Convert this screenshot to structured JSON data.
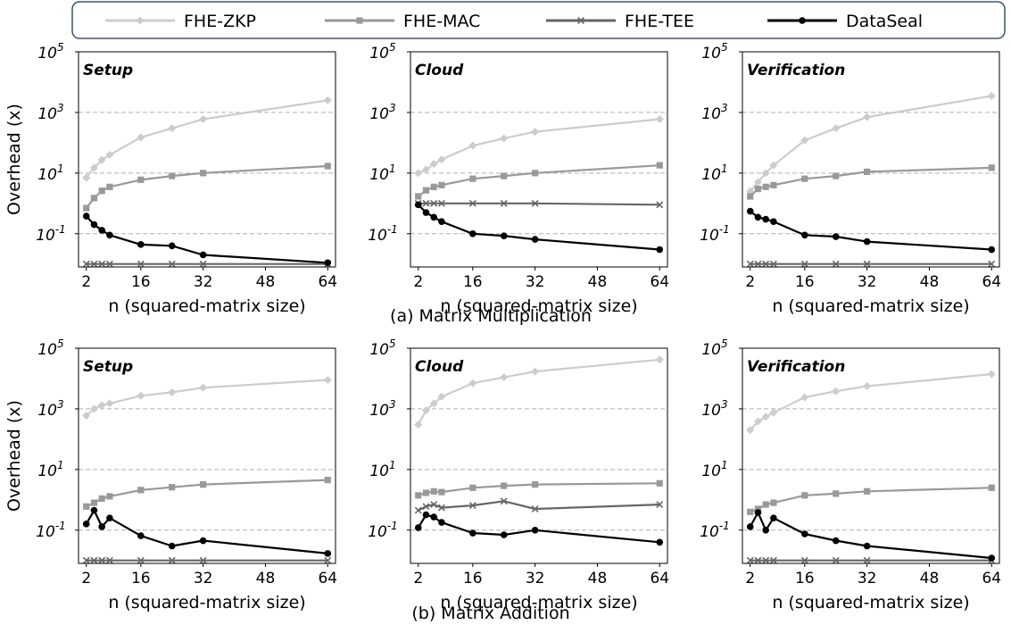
{
  "legend": [
    {
      "name": "FHE-ZKP",
      "color": "#cccccc",
      "marker": "diamond"
    },
    {
      "name": "FHE-MAC",
      "color": "#999999",
      "marker": "square"
    },
    {
      "name": "FHE-TEE",
      "color": "#666666",
      "marker": "x"
    },
    {
      "name": "DataSeal",
      "color": "#000000",
      "marker": "circle"
    }
  ],
  "captions": [
    "(a) Matrix Multiplication",
    "(b) Matrix Addition"
  ],
  "chart_data": [
    {
      "type": "line",
      "group": "(a) Matrix Multiplication",
      "title": "Setup",
      "xlabel": "n (squared-matrix size)",
      "ylabel": "Overhead (x)",
      "x": [
        2,
        4,
        6,
        8,
        16,
        24,
        32,
        64
      ],
      "yscale": "log",
      "ylim": [
        0.008,
        100000
      ],
      "xlim": [
        0,
        66
      ],
      "xticks": [
        2,
        16,
        32,
        48,
        64
      ],
      "yticks": [
        "10^-1",
        "10^1",
        "10^3",
        "10^5"
      ],
      "series": [
        {
          "name": "FHE-ZKP",
          "values": [
            7,
            15,
            27,
            40,
            150,
            300,
            600,
            2500
          ]
        },
        {
          "name": "FHE-MAC",
          "values": [
            0.7,
            1.5,
            2.6,
            3.5,
            6,
            8,
            10,
            17
          ]
        },
        {
          "name": "FHE-TEE",
          "values": [
            0.01,
            0.01,
            0.01,
            0.01,
            0.01,
            0.01,
            0.01,
            0.01
          ]
        },
        {
          "name": "DataSeal",
          "values": [
            0.38,
            0.2,
            0.13,
            0.09,
            0.044,
            0.04,
            0.02,
            0.011
          ]
        }
      ]
    },
    {
      "type": "line",
      "group": "(a) Matrix Multiplication",
      "title": "Cloud",
      "xlabel": "n (squared-matrix size)",
      "ylabel": "",
      "x": [
        2,
        4,
        6,
        8,
        16,
        24,
        32,
        64
      ],
      "yscale": "log",
      "ylim": [
        0.008,
        100000
      ],
      "xlim": [
        0,
        66
      ],
      "xticks": [
        2,
        16,
        32,
        48,
        64
      ],
      "yticks": [
        "10^-1",
        "10^1",
        "10^3",
        "10^5"
      ],
      "series": [
        {
          "name": "FHE-ZKP",
          "values": [
            10,
            13,
            20,
            28,
            80,
            140,
            230,
            600
          ]
        },
        {
          "name": "FHE-MAC",
          "values": [
            1.7,
            2.7,
            3.5,
            4,
            6.5,
            8,
            10,
            18
          ]
        },
        {
          "name": "FHE-TEE",
          "values": [
            1,
            1,
            1,
            1,
            1,
            1,
            1,
            0.9
          ]
        },
        {
          "name": "DataSeal",
          "values": [
            0.9,
            0.5,
            0.35,
            0.25,
            0.1,
            0.085,
            0.065,
            0.03
          ]
        }
      ]
    },
    {
      "type": "line",
      "group": "(a) Matrix Multiplication",
      "title": "Verification",
      "xlabel": "n (squared-matrix size)",
      "ylabel": "",
      "x": [
        2,
        4,
        6,
        8,
        16,
        24,
        32,
        64
      ],
      "yscale": "log",
      "ylim": [
        0.008,
        100000
      ],
      "xlim": [
        0,
        66
      ],
      "xticks": [
        2,
        16,
        32,
        48,
        64
      ],
      "yticks": [
        "10^-1",
        "10^1",
        "10^3",
        "10^5"
      ],
      "series": [
        {
          "name": "FHE-ZKP",
          "values": [
            2.5,
            5,
            10,
            18,
            120,
            300,
            700,
            3500
          ]
        },
        {
          "name": "FHE-MAC",
          "values": [
            1.7,
            3,
            3.5,
            4,
            6.5,
            8,
            11,
            15
          ]
        },
        {
          "name": "FHE-TEE",
          "values": [
            0.01,
            0.01,
            0.01,
            0.01,
            0.01,
            0.01,
            0.01,
            0.01
          ]
        },
        {
          "name": "DataSeal",
          "values": [
            0.55,
            0.35,
            0.3,
            0.25,
            0.09,
            0.08,
            0.055,
            0.03
          ]
        }
      ]
    },
    {
      "type": "line",
      "group": "(b) Matrix Addition",
      "title": "Setup",
      "xlabel": "n (squared-matrix size)",
      "ylabel": "Overhead (x)",
      "x": [
        2,
        4,
        6,
        8,
        16,
        24,
        32,
        64
      ],
      "yscale": "log",
      "ylim": [
        0.008,
        100000
      ],
      "xlim": [
        0,
        66
      ],
      "xticks": [
        2,
        16,
        32,
        48,
        64
      ],
      "yticks": [
        "10^-1",
        "10^1",
        "10^3",
        "10^5"
      ],
      "series": [
        {
          "name": "FHE-ZKP",
          "values": [
            600,
            1000,
            1300,
            1500,
            2700,
            3500,
            5000,
            9000
          ]
        },
        {
          "name": "FHE-MAC",
          "values": [
            0.6,
            0.8,
            1.1,
            1.3,
            2.1,
            2.6,
            3.2,
            4.5
          ]
        },
        {
          "name": "FHE-TEE",
          "values": [
            0.01,
            0.01,
            0.01,
            0.01,
            0.01,
            0.01,
            0.01,
            0.01
          ]
        },
        {
          "name": "DataSeal",
          "values": [
            0.16,
            0.45,
            0.13,
            0.25,
            0.065,
            0.03,
            0.045,
            0.017
          ]
        }
      ]
    },
    {
      "type": "line",
      "group": "(b) Matrix Addition",
      "title": "Cloud",
      "xlabel": "n (squared-matrix size)",
      "ylabel": "",
      "x": [
        2,
        4,
        6,
        8,
        16,
        24,
        32,
        64
      ],
      "yscale": "log",
      "ylim": [
        0.008,
        100000
      ],
      "xlim": [
        0,
        66
      ],
      "xticks": [
        2,
        16,
        32,
        48,
        64
      ],
      "yticks": [
        "10^-1",
        "10^1",
        "10^3",
        "10^5"
      ],
      "series": [
        {
          "name": "FHE-ZKP",
          "values": [
            300,
            900,
            1500,
            2500,
            7000,
            11000,
            17000,
            42000
          ]
        },
        {
          "name": "FHE-MAC",
          "values": [
            1.4,
            1.7,
            1.9,
            1.8,
            2.5,
            2.9,
            3.2,
            3.5
          ]
        },
        {
          "name": "FHE-TEE",
          "values": [
            0.45,
            0.6,
            0.7,
            0.55,
            0.65,
            0.9,
            0.5,
            0.7
          ]
        },
        {
          "name": "DataSeal",
          "values": [
            0.12,
            0.32,
            0.27,
            0.18,
            0.08,
            0.07,
            0.1,
            0.04
          ]
        }
      ]
    },
    {
      "type": "line",
      "group": "(b) Matrix Addition",
      "title": "Verification",
      "xlabel": "n (squared-matrix size)",
      "ylabel": "",
      "x": [
        2,
        4,
        6,
        8,
        16,
        24,
        32,
        64
      ],
      "yscale": "log",
      "ylim": [
        0.008,
        100000
      ],
      "xlim": [
        0,
        66
      ],
      "xticks": [
        2,
        16,
        32,
        48,
        64
      ],
      "yticks": [
        "10^-1",
        "10^1",
        "10^3",
        "10^5"
      ],
      "series": [
        {
          "name": "FHE-ZKP",
          "values": [
            200,
            380,
            550,
            750,
            2400,
            3800,
            5600,
            14000
          ]
        },
        {
          "name": "FHE-MAC",
          "values": [
            0.4,
            0.5,
            0.7,
            0.8,
            1.4,
            1.6,
            1.9,
            2.5
          ]
        },
        {
          "name": "FHE-TEE",
          "values": [
            0.01,
            0.01,
            0.01,
            0.01,
            0.01,
            0.01,
            0.01,
            0.01
          ]
        },
        {
          "name": "DataSeal",
          "values": [
            0.13,
            0.38,
            0.1,
            0.25,
            0.075,
            0.045,
            0.03,
            0.012
          ]
        }
      ]
    }
  ]
}
